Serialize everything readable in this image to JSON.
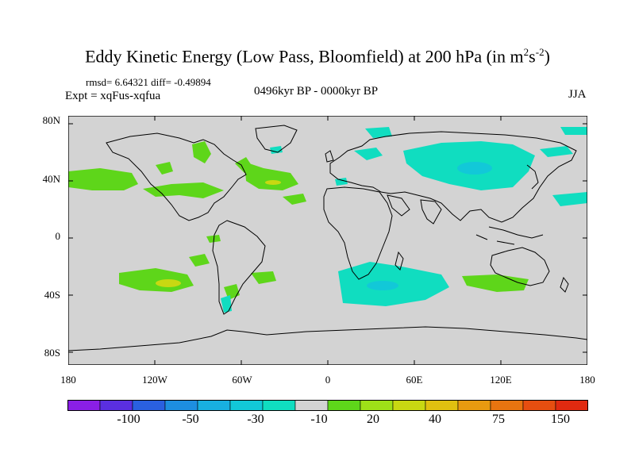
{
  "title_main": "Eddy Kinetic Energy (Low Pass, Bloomfield) at 200 hPa (in m",
  "title_sup1": "2",
  "title_mid": "s",
  "title_sup2": "-2",
  "title_end": ")",
  "rmsd_line": "rmsd= 6.64321 diff= -0.49894",
  "expt_line": "Expt = xqFus-xqfua",
  "period": "0496kyr BP - 0000kyr BP",
  "season": "JJA",
  "lat_labels": [
    "80N",
    "40N",
    "0",
    "40S",
    "80S"
  ],
  "lon_labels": [
    "180",
    "120W",
    "60W",
    "0",
    "60E",
    "120E",
    "180"
  ],
  "colorbar": {
    "labels": [
      "-100",
      "-50",
      "-30",
      "-10",
      "20",
      "40",
      "75",
      "150"
    ],
    "colors": [
      "#8a1fe6",
      "#5a2fe0",
      "#2a60e0",
      "#1d8ee0",
      "#18b0e0",
      "#12c8d8",
      "#10ddc0",
      "#d3d3d3",
      "#5ed61a",
      "#9ee018",
      "#c8d812",
      "#e0c010",
      "#e89a10",
      "#e87410",
      "#e64e10",
      "#e02a10"
    ]
  },
  "colors": {
    "land_sea_background": "#d3d3d3",
    "positive_anomaly": "#5ed61a",
    "negative_anomaly": "#10ddc0"
  }
}
